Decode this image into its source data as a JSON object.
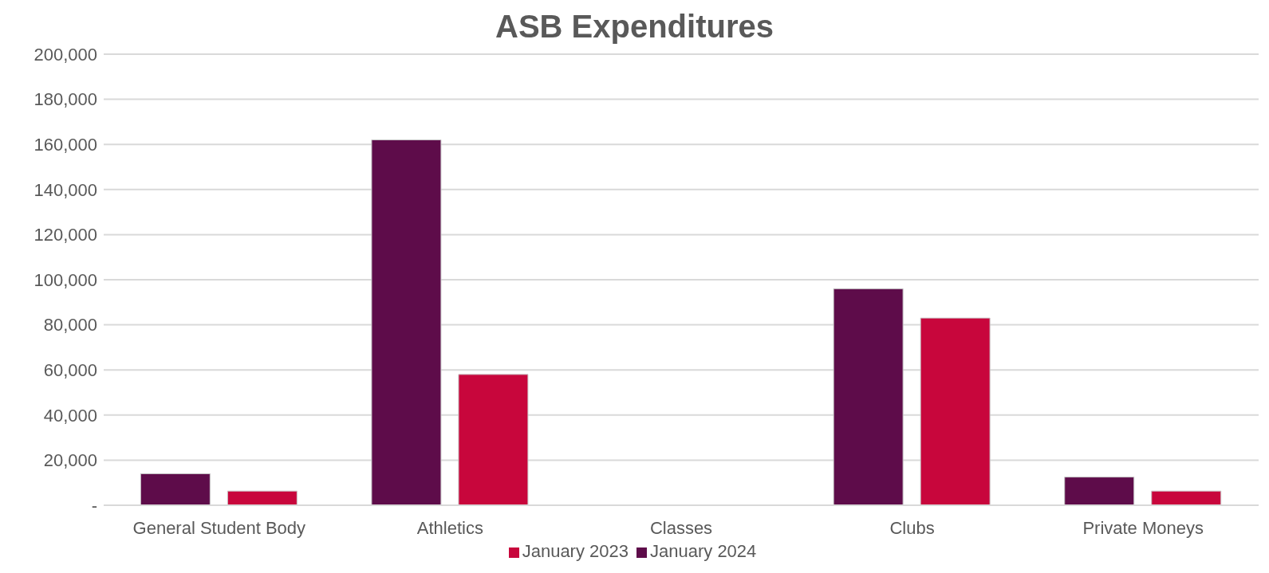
{
  "chart_data": {
    "type": "bar",
    "title": "ASB Expenditures",
    "categories": [
      "General Student Body",
      "Athletics",
      "Classes",
      "Clubs",
      "Private Moneys"
    ],
    "series": [
      {
        "name": "January 2024",
        "color": "#5e0c4a",
        "values": [
          14000,
          162000,
          0,
          96000,
          12500
        ]
      },
      {
        "name": "January 2023",
        "color": "#c8063c",
        "values": [
          6300,
          58000,
          null,
          83000,
          6300
        ]
      }
    ],
    "ylim": [
      0,
      200000
    ],
    "yticks": [
      {
        "value": 0,
        "label": "-"
      },
      {
        "value": 20000,
        "label": "20,000"
      },
      {
        "value": 40000,
        "label": "40,000"
      },
      {
        "value": 60000,
        "label": "60,000"
      },
      {
        "value": 80000,
        "label": "80,000"
      },
      {
        "value": 100000,
        "label": "100,000"
      },
      {
        "value": 120000,
        "label": "120,000"
      },
      {
        "value": 140000,
        "label": "140,000"
      },
      {
        "value": 160000,
        "label": "160,000"
      },
      {
        "value": 180000,
        "label": "180,000"
      },
      {
        "value": 200000,
        "label": "200,000"
      }
    ],
    "grid": "y",
    "legend": "bottom"
  }
}
